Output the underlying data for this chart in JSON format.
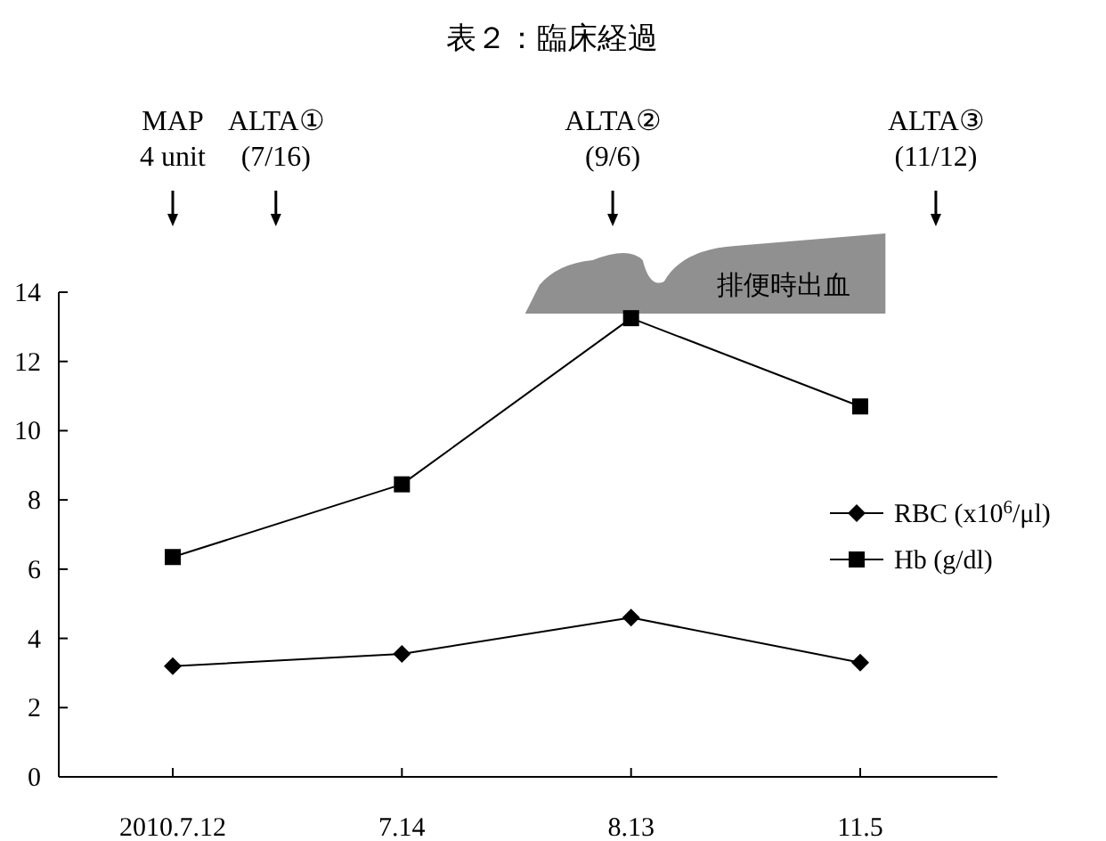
{
  "chart_data": {
    "type": "line",
    "title": "表２：臨床経過",
    "categories": [
      "2010.7.12",
      "7.14",
      "8.13",
      "11.5"
    ],
    "series": [
      {
        "name": "RBC (x10$^{6}$/μl)",
        "color": "#000000",
        "marker": "diamond",
        "values": [
          3.2,
          3.55,
          4.6,
          3.3
        ]
      },
      {
        "name": "Hb (g/dl)",
        "color": "#000000",
        "marker": "square",
        "values": [
          6.35,
          8.45,
          13.25,
          10.7
        ]
      }
    ],
    "ylim": [
      0,
      14
    ],
    "yticks": [
      0,
      2,
      4,
      6,
      8,
      10,
      12,
      14
    ],
    "legend": "right",
    "line_style": "solid",
    "annotations": [
      "MAP 4 unit",
      "ALTA① (7/16)",
      "ALTA② (9/6)",
      "ALTA③ (11/12)",
      "排便時出血"
    ]
  }
}
